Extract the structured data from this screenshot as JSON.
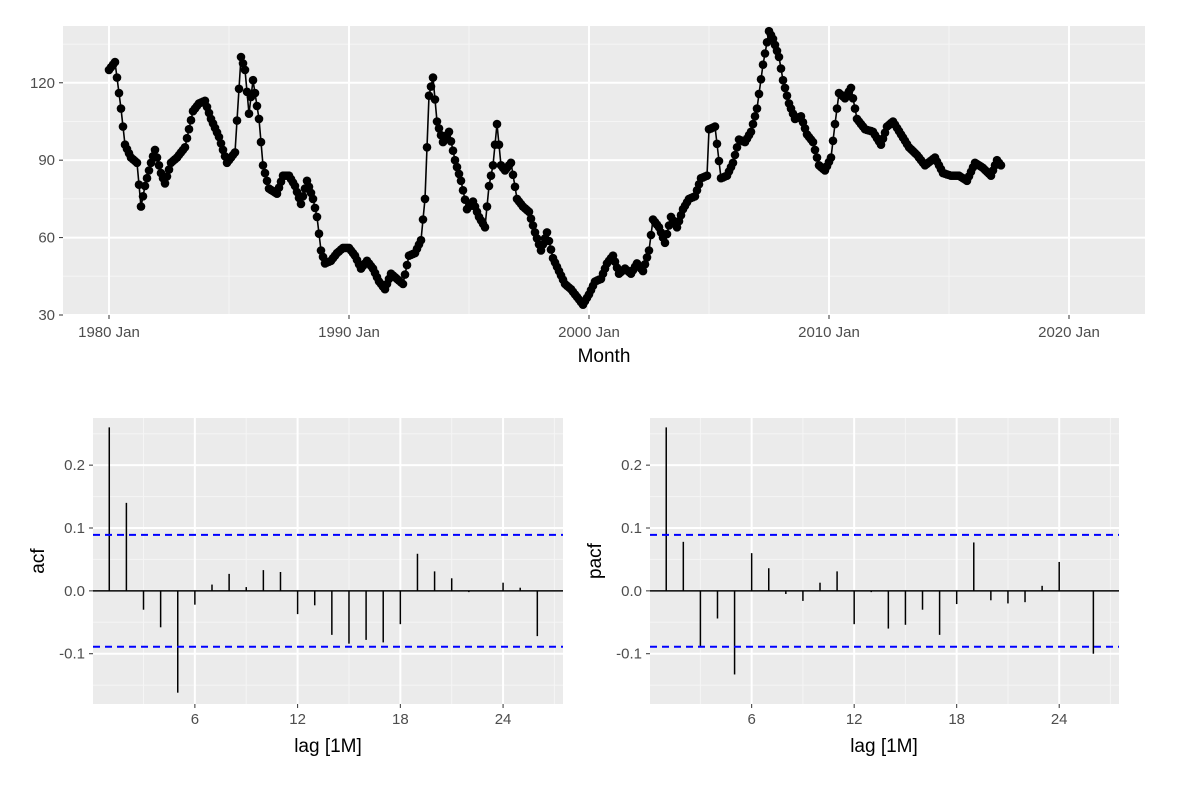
{
  "colors": {
    "panel": "#ebebeb",
    "grid_major": "#ffffff",
    "grid_minor": "#f5f5f5",
    "series": "#000000",
    "threshold": "#0000ff",
    "tick_text": "#4d4d4d"
  },
  "chart_data": [
    {
      "type": "line",
      "xlabel": "Month",
      "ylabel": "",
      "x_start": "1980 Jan",
      "x_frequency": "monthly",
      "markers": true,
      "ylim": [
        30,
        142
      ],
      "xlim": [
        "1978 Feb",
        "2023 Mar"
      ],
      "y_ticks": [
        30,
        60,
        90,
        120
      ],
      "x_ticks": [
        "1980 Jan",
        "1990 Jan",
        "2000 Jan",
        "2010 Jan",
        "2020 Jan"
      ],
      "grid": true,
      "anchors": [
        [
          "1980 Jan",
          125
        ],
        [
          "1980 Apr",
          128
        ],
        [
          "1980 Jul",
          110
        ],
        [
          "1980 Sep",
          96
        ],
        [
          "1980 Dec",
          91
        ],
        [
          "1981 Mar",
          89
        ],
        [
          "1981 May",
          72
        ],
        [
          "1981 Jul",
          80
        ],
        [
          "1981 Oct",
          89
        ],
        [
          "1981 Dec",
          94
        ],
        [
          "1982 Mar",
          85
        ],
        [
          "1982 May",
          81
        ],
        [
          "1982 Aug",
          89
        ],
        [
          "1982 Nov",
          91
        ],
        [
          "1983 Mar",
          95
        ],
        [
          "1983 Jul",
          109
        ],
        [
          "1983 Oct",
          112
        ],
        [
          "1984 Jan",
          113
        ],
        [
          "1984 Apr",
          106
        ],
        [
          "1984 Aug",
          99
        ],
        [
          "1984 Dec",
          89
        ],
        [
          "1985 Apr",
          93
        ],
        [
          "1985 Jul",
          130
        ],
        [
          "1985 Sep",
          125
        ],
        [
          "1985 Nov",
          108
        ],
        [
          "1986 Jan",
          121
        ],
        [
          "1986 Apr",
          106
        ],
        [
          "1986 Jun",
          88
        ],
        [
          "1986 Sep",
          79
        ],
        [
          "1987 Jan",
          77
        ],
        [
          "1987 Apr",
          84
        ],
        [
          "1987 Jul",
          84
        ],
        [
          "1987 Oct",
          80
        ],
        [
          "1988 Jan",
          73
        ],
        [
          "1988 Apr",
          82
        ],
        [
          "1988 Jul",
          75
        ],
        [
          "1988 Sep",
          68
        ],
        [
          "1988 Nov",
          55
        ],
        [
          "1989 Jan",
          50
        ],
        [
          "1989 Apr",
          51
        ],
        [
          "1989 Jul",
          54
        ],
        [
          "1989 Oct",
          56
        ],
        [
          "1990 Jan",
          56
        ],
        [
          "1990 Apr",
          53
        ],
        [
          "1990 Jul",
          48
        ],
        [
          "1990 Oct",
          51
        ],
        [
          "1991 Jan",
          48
        ],
        [
          "1991 Apr",
          43
        ],
        [
          "1991 Jul",
          40
        ],
        [
          "1991 Oct",
          46
        ],
        [
          "1992 Jan",
          44
        ],
        [
          "1992 Apr",
          42
        ],
        [
          "1992 Jul",
          53
        ],
        [
          "1992 Oct",
          54
        ],
        [
          "1993 Jan",
          59
        ],
        [
          "1993 Mar",
          75
        ],
        [
          "1993 May",
          115
        ],
        [
          "1993 Jul",
          122
        ],
        [
          "1993 Sep",
          105
        ],
        [
          "1993 Dec",
          97
        ],
        [
          "1994 Mar",
          101
        ],
        [
          "1994 Jun",
          90
        ],
        [
          "1994 Sep",
          82
        ],
        [
          "1994 Dec",
          71
        ],
        [
          "1995 Mar",
          74
        ],
        [
          "1995 Jun",
          68
        ],
        [
          "1995 Sep",
          64
        ],
        [
          "1995 Nov",
          80
        ],
        [
          "1996 Jan",
          88
        ],
        [
          "1996 Mar",
          104
        ],
        [
          "1996 May",
          88
        ],
        [
          "1996 Jul",
          86
        ],
        [
          "1996 Oct",
          89
        ],
        [
          "1997 Jan",
          75
        ],
        [
          "1997 Apr",
          72
        ],
        [
          "1997 Jul",
          70
        ],
        [
          "1997 Oct",
          62
        ],
        [
          "1998 Jan",
          55
        ],
        [
          "1998 Apr",
          62
        ],
        [
          "1998 Jul",
          52
        ],
        [
          "1998 Oct",
          47
        ],
        [
          "1999 Jan",
          42
        ],
        [
          "1999 Apr",
          40
        ],
        [
          "1999 Jul",
          37
        ],
        [
          "1999 Oct",
          34
        ],
        [
          "2000 Jan",
          38
        ],
        [
          "2000 Apr",
          43
        ],
        [
          "2000 Jul",
          44
        ],
        [
          "2000 Oct",
          50
        ],
        [
          "2001 Jan",
          53
        ],
        [
          "2001 Apr",
          46
        ],
        [
          "2001 Jul",
          48
        ],
        [
          "2001 Oct",
          46
        ],
        [
          "2002 Jan",
          50
        ],
        [
          "2002 Apr",
          47
        ],
        [
          "2002 Jul",
          55
        ],
        [
          "2002 Sep",
          67
        ],
        [
          "2002 Dec",
          64
        ],
        [
          "2003 Mar",
          58
        ],
        [
          "2003 Jun",
          68
        ],
        [
          "2003 Sep",
          64
        ],
        [
          "2003 Dec",
          71
        ],
        [
          "2004 Mar",
          75
        ],
        [
          "2004 Jun",
          76
        ],
        [
          "2004 Sep",
          83
        ],
        [
          "2004 Dec",
          84
        ],
        [
          "2005 Jan",
          102
        ],
        [
          "2005 Apr",
          103
        ],
        [
          "2005 Jul",
          83
        ],
        [
          "2005 Oct",
          84
        ],
        [
          "2006 Jan",
          89
        ],
        [
          "2006 Apr",
          98
        ],
        [
          "2006 Jul",
          97
        ],
        [
          "2006 Oct",
          101
        ],
        [
          "2007 Jan",
          110
        ],
        [
          "2007 Apr",
          127
        ],
        [
          "2007 Jul",
          140
        ],
        [
          "2007 Sep",
          137
        ],
        [
          "2007 Dec",
          130
        ],
        [
          "2008 Feb",
          121
        ],
        [
          "2008 May",
          112
        ],
        [
          "2008 Aug",
          106
        ],
        [
          "2008 Nov",
          107
        ],
        [
          "2009 Feb",
          100
        ],
        [
          "2009 May",
          97
        ],
        [
          "2009 Aug",
          88
        ],
        [
          "2009 Nov",
          86
        ],
        [
          "2010 Feb",
          91
        ],
        [
          "2010 Apr",
          104
        ],
        [
          "2010 Jun",
          116
        ],
        [
          "2010 Sep",
          114
        ],
        [
          "2010 Dec",
          118
        ],
        [
          "2011 Mar",
          106
        ],
        [
          "2011 Jul",
          102
        ],
        [
          "2011 Nov",
          101
        ],
        [
          "2012 Mar",
          96
        ],
        [
          "2012 Jun",
          103
        ],
        [
          "2012 Sep",
          105
        ],
        [
          "2013 Jan",
          100
        ],
        [
          "2013 May",
          95
        ],
        [
          "2013 Sep",
          92
        ],
        [
          "2014 Jan",
          88
        ],
        [
          "2014 Jun",
          91
        ],
        [
          "2014 Oct",
          85
        ],
        [
          "2015 Feb",
          84
        ],
        [
          "2015 Jun",
          84
        ],
        [
          "2015 Oct",
          82
        ],
        [
          "2016 Feb",
          89
        ],
        [
          "2016 Jun",
          87
        ],
        [
          "2016 Oct",
          84
        ],
        [
          "2017 Jan",
          90
        ],
        [
          "2017 Mar",
          88
        ]
      ]
    },
    {
      "type": "bar",
      "ylabel": "acf",
      "xlabel": "lag [1M]",
      "lags": [
        1,
        2,
        3,
        4,
        5,
        6,
        7,
        8,
        9,
        10,
        11,
        12,
        13,
        14,
        15,
        16,
        17,
        18,
        19,
        20,
        21,
        22,
        23,
        24,
        25,
        26
      ],
      "values": [
        0.26,
        0.14,
        -0.03,
        -0.058,
        -0.162,
        -0.022,
        0.01,
        0.027,
        0.006,
        0.033,
        0.03,
        -0.037,
        -0.023,
        -0.07,
        -0.084,
        -0.078,
        -0.082,
        -0.053,
        0.059,
        0.031,
        0.02,
        -0.002,
        0.0,
        0.013,
        0.005,
        -0.072
      ],
      "threshold": 0.089,
      "xlim": [
        0.05,
        27.5
      ],
      "ylim": [
        -0.18,
        0.275
      ],
      "y_ticks": [
        -0.1,
        0.0,
        0.1,
        0.2
      ],
      "y_tick_labels": [
        "-0.1",
        "0.0",
        "0.1",
        "0.2"
      ],
      "x_ticks": [
        6,
        12,
        18,
        24
      ],
      "grid": true
    },
    {
      "type": "bar",
      "ylabel": "pacf",
      "xlabel": "lag [1M]",
      "lags": [
        1,
        2,
        3,
        4,
        5,
        6,
        7,
        8,
        9,
        10,
        11,
        12,
        13,
        14,
        15,
        16,
        17,
        18,
        19,
        20,
        21,
        22,
        23,
        24,
        25,
        26
      ],
      "values": [
        0.26,
        0.078,
        -0.088,
        -0.044,
        -0.133,
        0.06,
        0.036,
        -0.005,
        -0.016,
        0.013,
        0.031,
        -0.053,
        -0.002,
        -0.06,
        -0.054,
        -0.03,
        -0.07,
        -0.021,
        0.077,
        -0.015,
        -0.02,
        -0.018,
        0.008,
        0.046,
        0.0,
        -0.1
      ],
      "threshold": 0.089,
      "xlim": [
        0.05,
        27.5
      ],
      "ylim": [
        -0.18,
        0.275
      ],
      "y_ticks": [
        -0.1,
        0.0,
        0.1,
        0.2
      ],
      "y_tick_labels": [
        "-0.1",
        "0.0",
        "0.1",
        "0.2"
      ],
      "x_ticks": [
        6,
        12,
        18,
        24
      ],
      "grid": true
    }
  ]
}
